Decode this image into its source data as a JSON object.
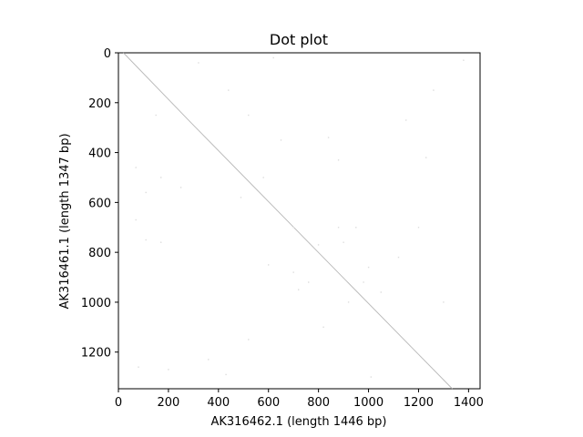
{
  "chart_data": {
    "type": "scatter",
    "title": "Dot plot",
    "xlabel": "AK316462.1 (length 1446 bp)",
    "ylabel": "AK316461.1 (length 1347 bp)",
    "xlim": [
      0,
      1446
    ],
    "ylim": [
      1347,
      0
    ],
    "y_inverted": true,
    "grid": false,
    "x_ticks": [
      0,
      200,
      400,
      600,
      800,
      1000,
      1200,
      1400
    ],
    "y_ticks": [
      0,
      200,
      400,
      600,
      800,
      1000,
      1200
    ],
    "series": [
      {
        "kind": "line",
        "color": "#b8b8b8",
        "points": [
          [
            20,
            0
          ],
          [
            290,
            280
          ],
          [
            1335,
            1347
          ]
        ]
      },
      {
        "kind": "points",
        "color": "#dddddd",
        "points": [
          [
            70,
            460
          ],
          [
            110,
            560
          ],
          [
            150,
            250
          ],
          [
            170,
            500
          ],
          [
            70,
            670
          ],
          [
            110,
            750
          ],
          [
            170,
            760
          ],
          [
            250,
            540
          ],
          [
            320,
            40
          ],
          [
            440,
            150
          ],
          [
            490,
            580
          ],
          [
            520,
            250
          ],
          [
            580,
            500
          ],
          [
            620,
            20
          ],
          [
            650,
            350
          ],
          [
            700,
            880
          ],
          [
            720,
            950
          ],
          [
            760,
            920
          ],
          [
            800,
            770
          ],
          [
            820,
            1100
          ],
          [
            840,
            340
          ],
          [
            880,
            700
          ],
          [
            900,
            760
          ],
          [
            920,
            1000
          ],
          [
            950,
            700
          ],
          [
            980,
            920
          ],
          [
            1000,
            860
          ],
          [
            1010,
            1300
          ],
          [
            1050,
            960
          ],
          [
            1120,
            820
          ],
          [
            1150,
            270
          ],
          [
            1200,
            700
          ],
          [
            1230,
            420
          ],
          [
            1260,
            150
          ],
          [
            1300,
            1000
          ],
          [
            1380,
            30
          ],
          [
            360,
            1230
          ],
          [
            430,
            1290
          ],
          [
            520,
            1150
          ],
          [
            200,
            1270
          ],
          [
            80,
            1260
          ],
          [
            880,
            430
          ],
          [
            700,
            700
          ],
          [
            600,
            850
          ]
        ]
      }
    ]
  }
}
